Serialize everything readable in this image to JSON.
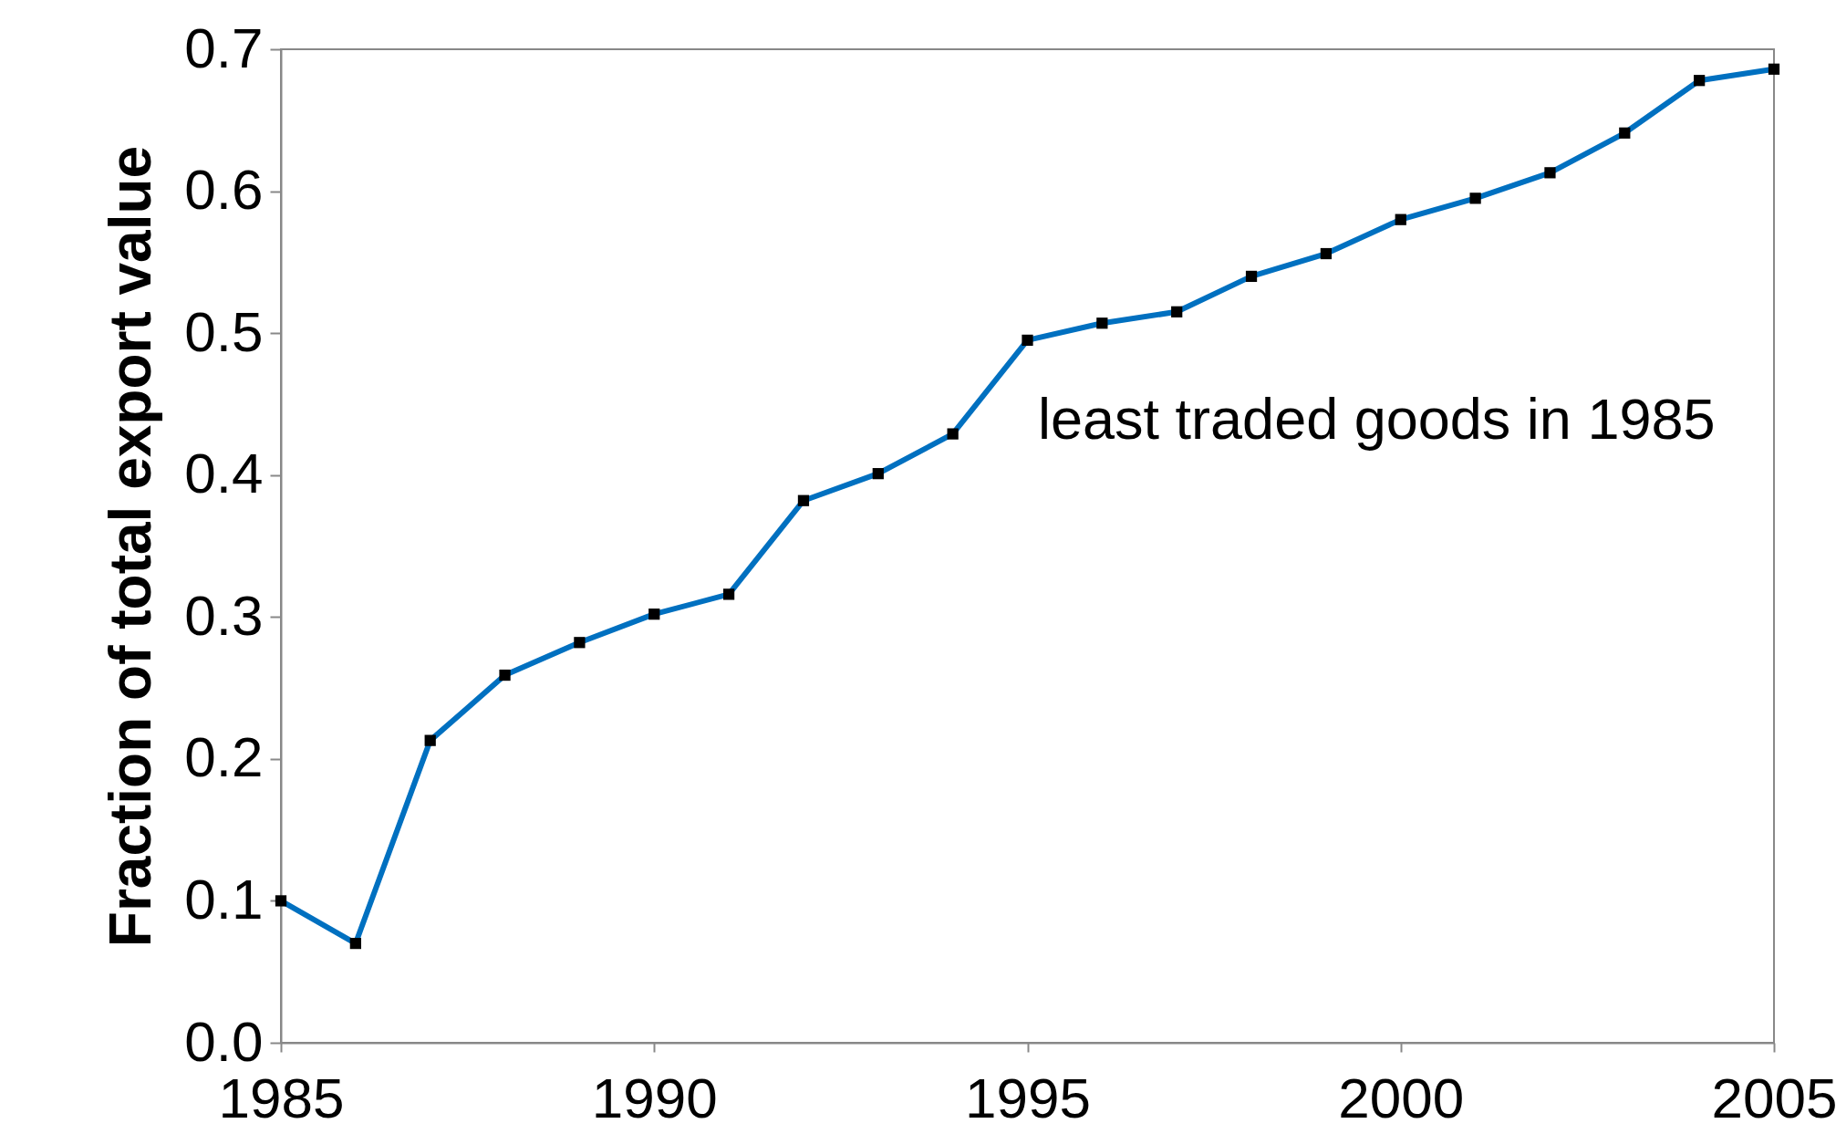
{
  "chart_data": {
    "type": "line",
    "ylabel": "Fraction of total export value",
    "x": [
      1985,
      1986,
      1987,
      1988,
      1989,
      1990,
      1991,
      1992,
      1993,
      1994,
      1995,
      1996,
      1997,
      1998,
      1999,
      2000,
      2001,
      2002,
      2003,
      2004,
      2005
    ],
    "series": [
      {
        "name": "least traded goods in 1985",
        "color": "#0070c0",
        "values": [
          0.1,
          0.07,
          0.213,
          0.259,
          0.282,
          0.302,
          0.316,
          0.382,
          0.401,
          0.429,
          0.495,
          0.507,
          0.515,
          0.54,
          0.556,
          0.58,
          0.595,
          0.613,
          0.641,
          0.678,
          0.686
        ]
      }
    ],
    "xlim": [
      1985,
      2005
    ],
    "xticks": [
      1985,
      1990,
      1995,
      2000,
      2005
    ],
    "ylim": [
      0,
      0.7
    ],
    "yticks": [
      {
        "value": 0,
        "label": "0.0"
      },
      0.1,
      0.2,
      0.3,
      0.4,
      0.5,
      0.6,
      0.7
    ],
    "marker": "square",
    "grid": false
  }
}
